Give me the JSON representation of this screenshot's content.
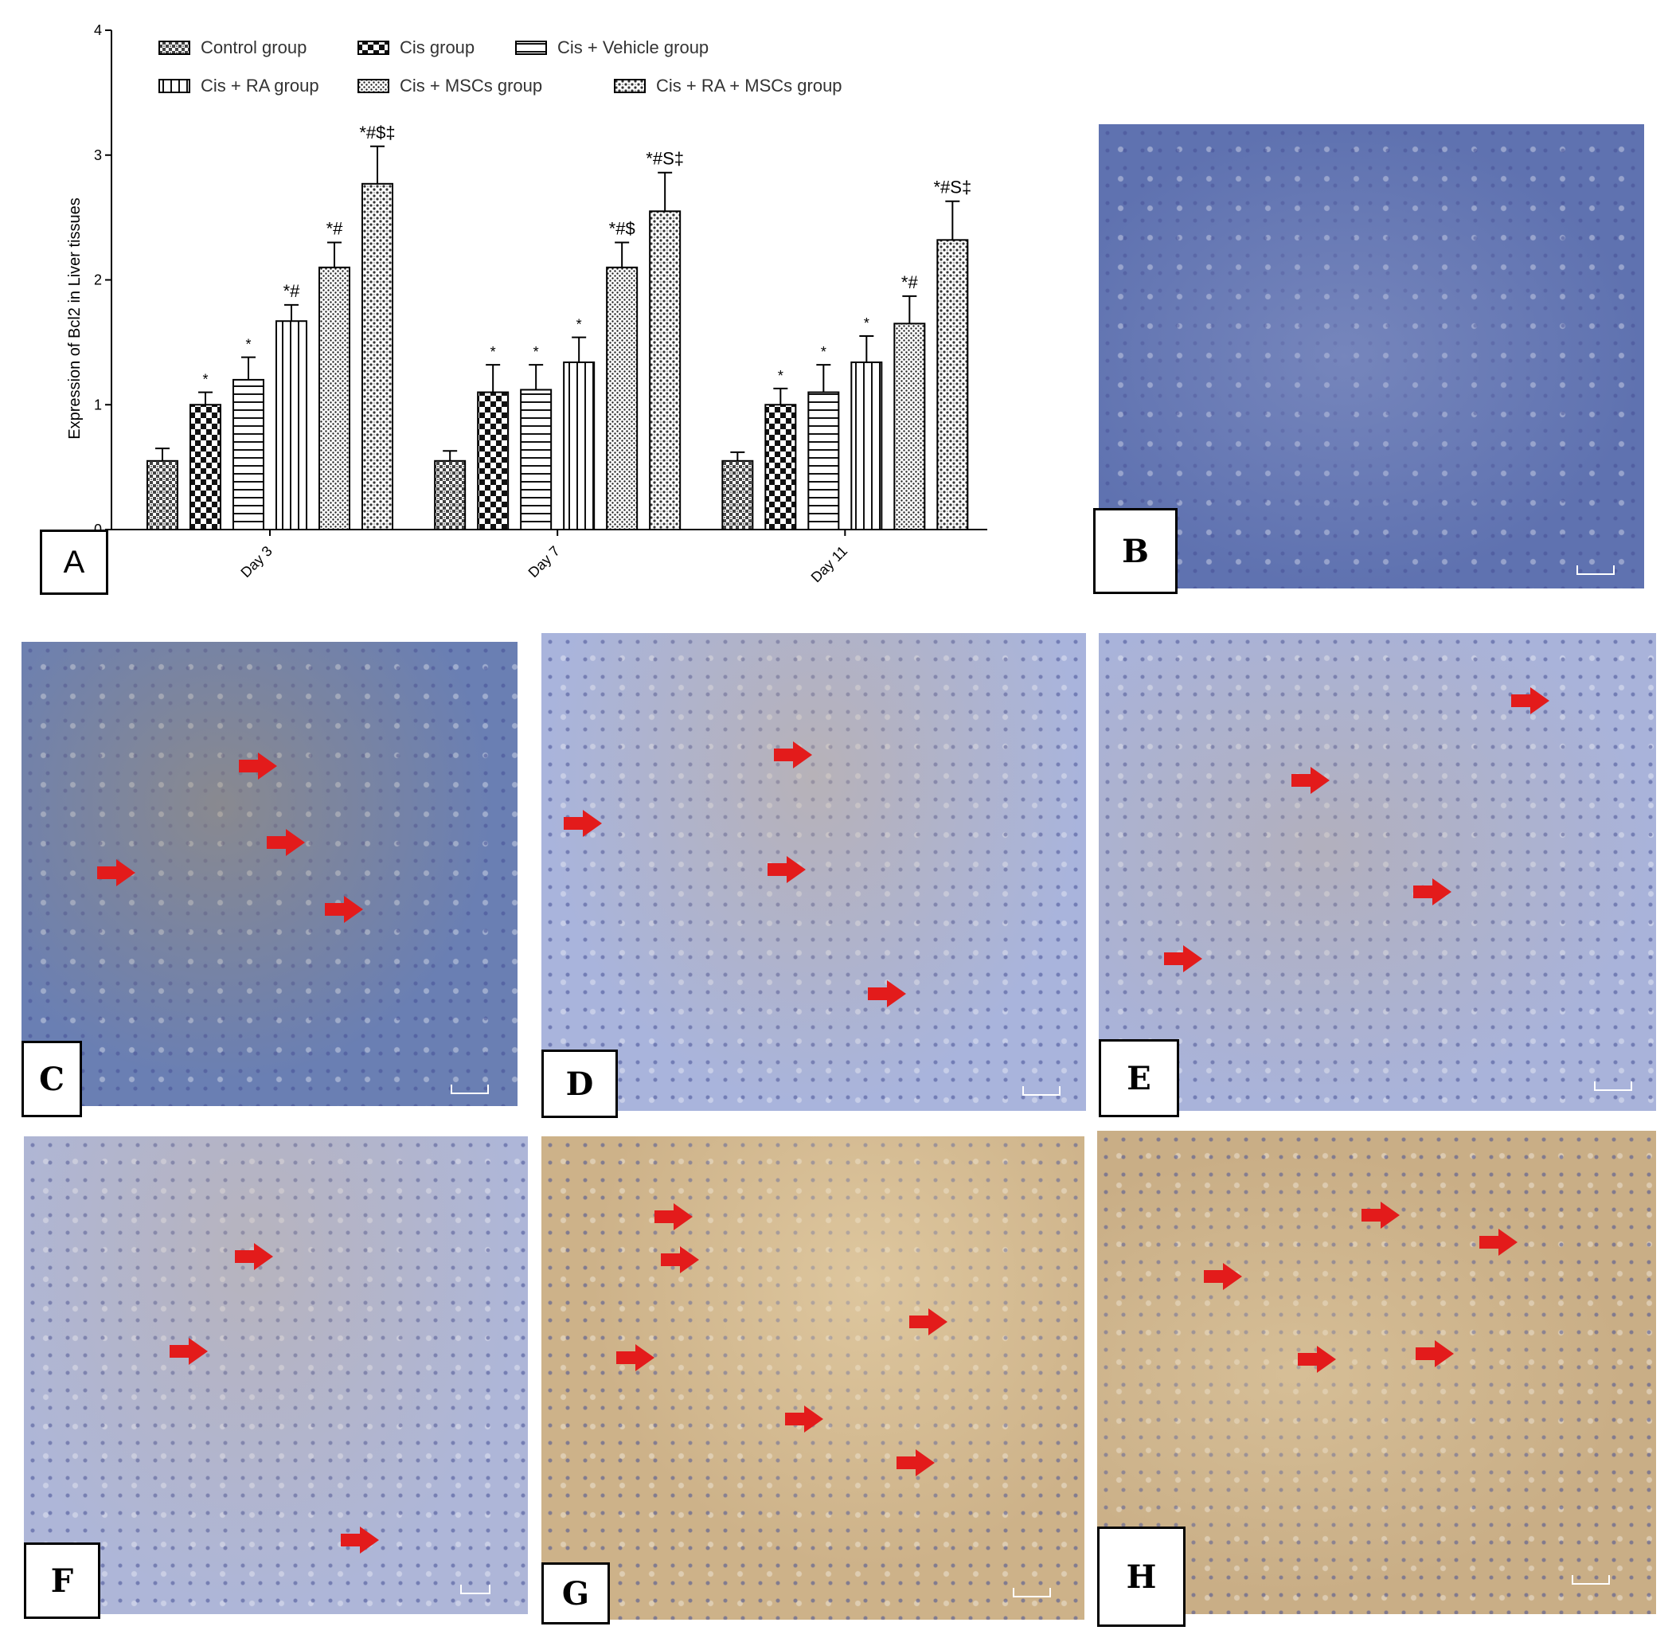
{
  "panels": {
    "a_label": "A",
    "labels": [
      "B",
      "C",
      "D",
      "E",
      "F",
      "G",
      "H"
    ]
  },
  "colors": {
    "arrow": "#e31b1b",
    "stain_blue": "#8a9ad4",
    "stain_brown": "#c9a878"
  },
  "chart_data": {
    "type": "bar",
    "ylabel": "Expression of Bcl2 in Liver tissues",
    "xlabel": "",
    "ylim": [
      0,
      4
    ],
    "yticks": [
      0,
      1,
      2,
      3,
      4
    ],
    "grid": false,
    "legend_position": "top",
    "categories": [
      "Day 3",
      "Day 7",
      "Day 11"
    ],
    "series": [
      {
        "name": "Control group",
        "values": [
          0.55,
          0.55,
          0.55
        ],
        "errors": [
          0.1,
          0.08,
          0.07
        ],
        "annotations": [
          "",
          "",
          ""
        ]
      },
      {
        "name": "Cis group",
        "values": [
          1.0,
          1.1,
          1.0
        ],
        "errors": [
          0.1,
          0.22,
          0.13
        ],
        "annotations": [
          "*",
          "*",
          "*"
        ]
      },
      {
        "name": "Cis + Vehicle group",
        "values": [
          1.2,
          1.12,
          1.1
        ],
        "errors": [
          0.18,
          0.2,
          0.22
        ],
        "annotations": [
          "*",
          "*",
          "*"
        ]
      },
      {
        "name": "Cis + RA group",
        "values": [
          1.67,
          1.34,
          1.34
        ],
        "errors": [
          0.13,
          0.2,
          0.21
        ],
        "annotations": [
          "*#",
          "*",
          "*"
        ]
      },
      {
        "name": "Cis + MSCs group",
        "values": [
          2.1,
          2.1,
          1.65
        ],
        "errors": [
          0.2,
          0.2,
          0.22
        ],
        "annotations": [
          "*#",
          "*#$",
          "*#"
        ]
      },
      {
        "name": "Cis + RA + MSCs group",
        "values": [
          2.77,
          2.55,
          2.32
        ],
        "errors": [
          0.3,
          0.31,
          0.31
        ],
        "annotations": [
          "*#$‡",
          "*#S‡",
          "*#S‡"
        ]
      }
    ]
  }
}
